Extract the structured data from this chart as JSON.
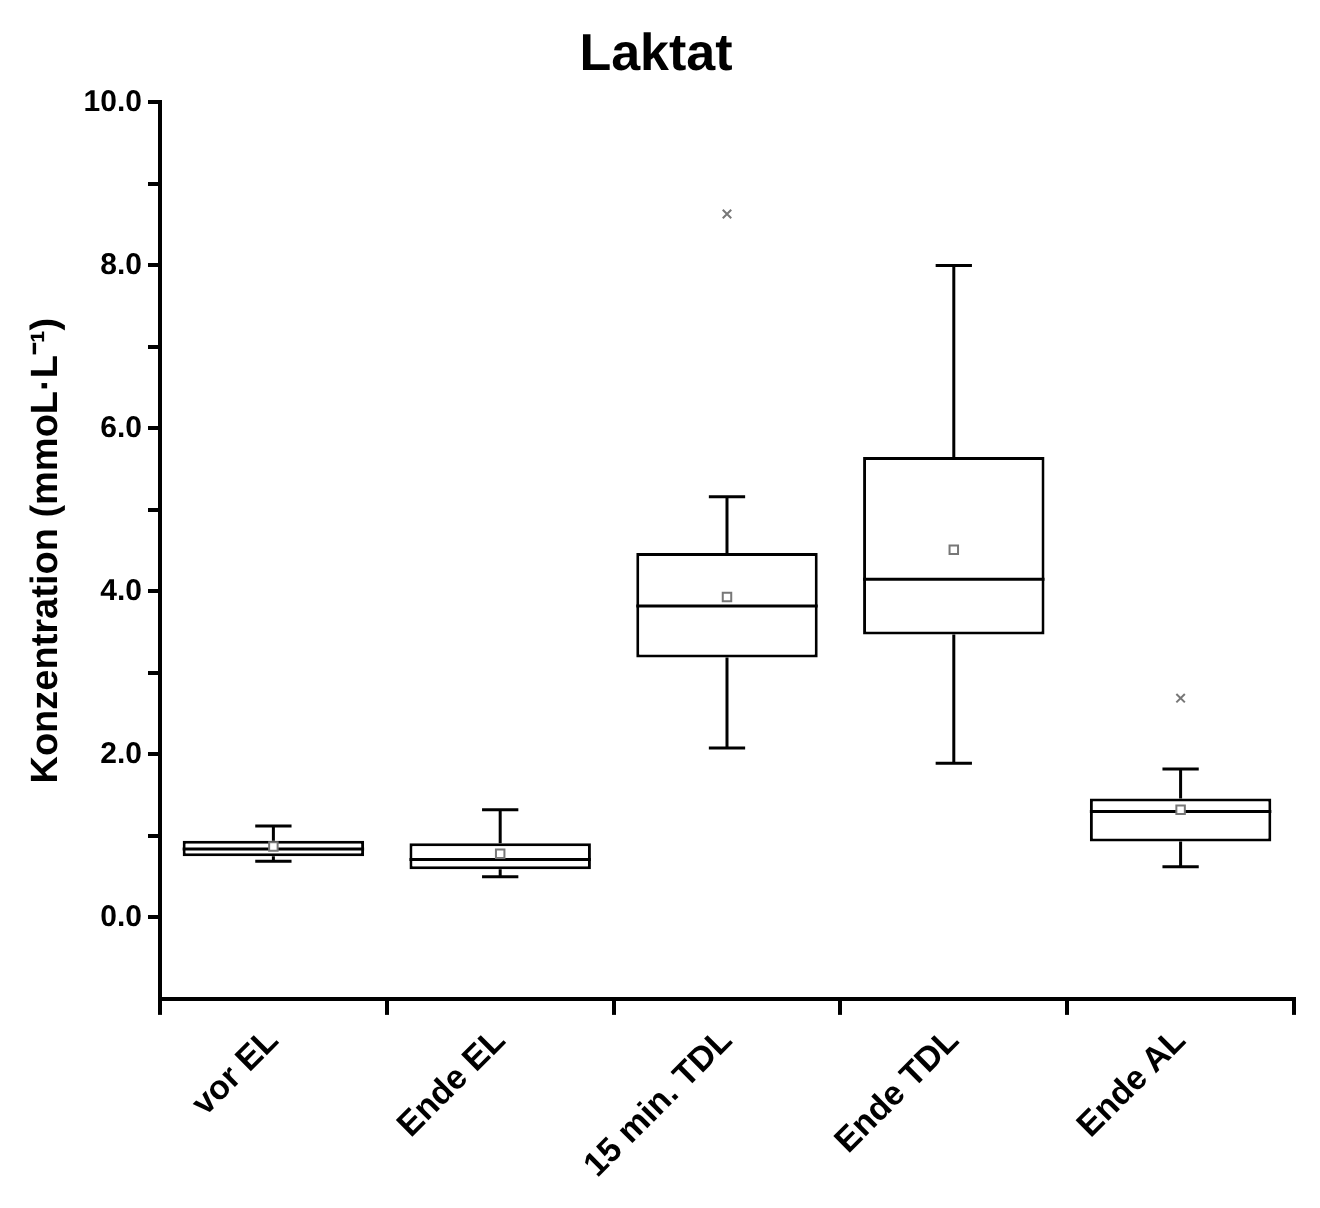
{
  "chart_data": {
    "type": "box",
    "title": "Laktat",
    "ylabel": "Konzentration (mmoL·L⁻¹)",
    "color": "#000000",
    "categories": [
      "vor EL",
      "Ende EL",
      "15 min. TDL",
      "Ende TDL",
      "Ende AL"
    ],
    "boxes": [
      {
        "low": 0.69,
        "q1": 0.75,
        "median": 0.84,
        "q3": 0.94,
        "high": 1.12,
        "mean": 0.87
      },
      {
        "low": 0.5,
        "q1": 0.59,
        "median": 0.71,
        "q3": 0.91,
        "high": 1.32,
        "mean": 0.78
      },
      {
        "low": 2.08,
        "q1": 3.19,
        "median": 3.82,
        "q3": 4.47,
        "high": 5.16,
        "mean": 3.93,
        "outliers": [
          8.63
        ]
      },
      {
        "low": 1.89,
        "q1": 3.47,
        "median": 4.15,
        "q3": 5.65,
        "high": 8.0,
        "mean": 4.51
      },
      {
        "low": 0.62,
        "q1": 0.93,
        "median": 1.3,
        "q3": 1.46,
        "high": 1.82,
        "mean": 1.32,
        "outliers": [
          2.69
        ]
      }
    ],
    "ylim": [
      -1,
      10
    ],
    "yticks": [
      {
        "value": 0,
        "label": "0.0"
      },
      {
        "value": 1,
        "label": null
      },
      {
        "value": 2,
        "label": "2.0"
      },
      {
        "value": 3,
        "label": null
      },
      {
        "value": 4,
        "label": "4.0"
      },
      {
        "value": 5,
        "label": null
      },
      {
        "value": 6,
        "label": "6.0"
      },
      {
        "value": 7,
        "label": null
      },
      {
        "value": 8,
        "label": "8.0"
      },
      {
        "value": 9,
        "label": null
      },
      {
        "value": 10,
        "label": "10.0"
      }
    ],
    "grid": false,
    "legend": false
  }
}
